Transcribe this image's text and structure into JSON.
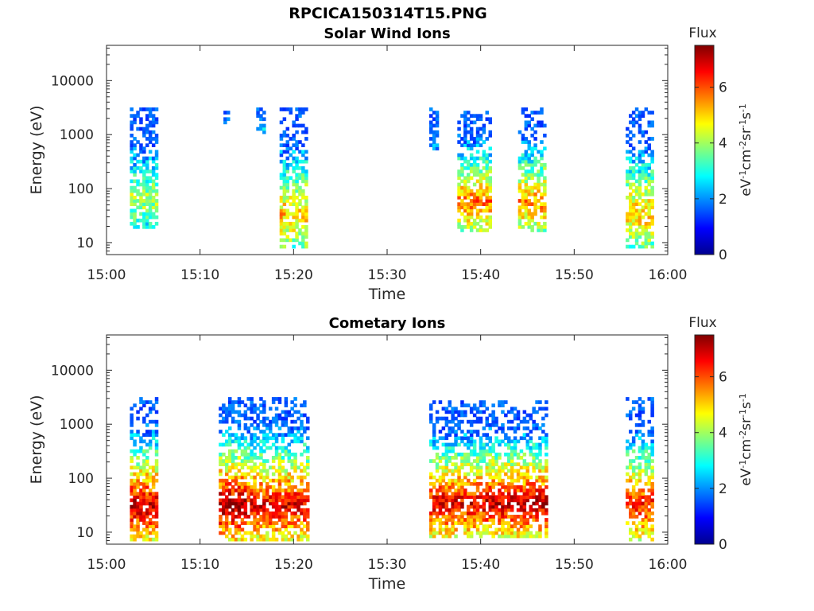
{
  "figure": {
    "title": "RPCICA150314T15.PNG"
  },
  "chart_data": [
    {
      "type": "heatmap",
      "title": "Solar Wind Ions",
      "xlabel": "Time",
      "ylabel": "Energy (eV)",
      "xticks": [
        "15:00",
        "15:10",
        "15:20",
        "15:30",
        "15:40",
        "15:50",
        "16:00"
      ],
      "xlim": [
        "15:00",
        "16:00"
      ],
      "yscale": "log",
      "ylim": [
        6,
        45000
      ],
      "yticks": [
        10,
        100,
        1000,
        10000
      ],
      "colorbar": {
        "label": "Flux",
        "units": "eV-1cm-2sr-1s-1",
        "range": [
          0,
          7.5
        ],
        "ticks": [
          0,
          2,
          4,
          6
        ],
        "colormap": "jet"
      },
      "bursts": [
        {
          "t0": "15:02.5",
          "t1": "15:05.5",
          "e_low": 18,
          "e_high": 3000,
          "peak": 4.2
        },
        {
          "t0": "15:12.5",
          "t1": "15:13.0",
          "e_low": 1500,
          "e_high": 3000,
          "peak": 2.5
        },
        {
          "t0": "15:16.0",
          "t1": "15:17.0",
          "e_low": 1000,
          "e_high": 3300,
          "peak": 2.6
        },
        {
          "t0": "15:18.5",
          "t1": "15:21.5",
          "e_low": 8,
          "e_high": 3000,
          "peak": 5.2
        },
        {
          "t0": "15:34.5",
          "t1": "15:35.5",
          "e_low": 500,
          "e_high": 3000,
          "peak": 2.2
        },
        {
          "t0": "15:37.5",
          "t1": "15:41.0",
          "e_low": 15,
          "e_high": 3000,
          "peak": 5.8
        },
        {
          "t0": "15:44.0",
          "t1": "15:47.0",
          "e_low": 15,
          "e_high": 3000,
          "peak": 5.6
        },
        {
          "t0": "15:55.5",
          "t1": "15:58.5",
          "e_low": 8,
          "e_high": 3000,
          "peak": 5.2
        }
      ]
    },
    {
      "type": "heatmap",
      "title": "Cometary Ions",
      "xlabel": "Time",
      "ylabel": "Energy (eV)",
      "xticks": [
        "15:00",
        "15:10",
        "15:20",
        "15:30",
        "15:40",
        "15:50",
        "16:00"
      ],
      "xlim": [
        "15:00",
        "16:00"
      ],
      "yscale": "log",
      "ylim": [
        6,
        45000
      ],
      "yticks": [
        10,
        100,
        1000,
        10000
      ],
      "colorbar": {
        "label": "Flux",
        "units": "eV-1cm-2sr-1s-1",
        "range": [
          0,
          7.5
        ],
        "ticks": [
          0,
          2,
          4,
          6
        ],
        "colormap": "jet"
      },
      "bursts": [
        {
          "t0": "15:02.5",
          "t1": "15:05.5",
          "e_low": 7,
          "e_high": 3000,
          "peak": 7.0
        },
        {
          "t0": "15:12.0",
          "t1": "15:15.0",
          "e_low": 7,
          "e_high": 3000,
          "peak": 7.3
        },
        {
          "t0": "15:15.0",
          "t1": "15:21.5",
          "e_low": 7,
          "e_high": 3000,
          "peak": 6.8
        },
        {
          "t0": "15:34.5",
          "t1": "15:40.5",
          "e_low": 8,
          "e_high": 2700,
          "peak": 6.8
        },
        {
          "t0": "15:40.5",
          "t1": "15:47.0",
          "e_low": 8,
          "e_high": 2700,
          "peak": 7.0
        },
        {
          "t0": "15:55.5",
          "t1": "15:58.5",
          "e_low": 7,
          "e_high": 3000,
          "peak": 6.4
        }
      ]
    }
  ]
}
